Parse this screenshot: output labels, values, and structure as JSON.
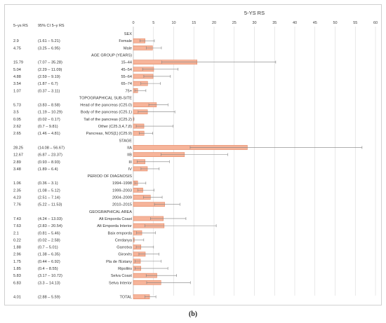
{
  "panel_label": "(b)",
  "chart_data": {
    "type": "bar",
    "orientation": "horizontal",
    "title": "5-YS RS",
    "xlim": [
      0,
      60
    ],
    "xticks": [
      0,
      5,
      10,
      15,
      20,
      25,
      30,
      35,
      40,
      45,
      50,
      55,
      60
    ],
    "grid": true,
    "bar_color": "#f6b49a",
    "bar_edge_color": "#e07b54",
    "table_headers": {
      "rs": "5–ys RS",
      "ci": "95% CI 5–y RS"
    },
    "rows": [
      {
        "kind": "header",
        "label": "SEX"
      },
      {
        "kind": "data",
        "label": "Female",
        "value": 2.9,
        "lo": 1.61,
        "hi": 5.21,
        "rs": "2.9",
        "ci": "(1.61 – 5.21)"
      },
      {
        "kind": "data",
        "label": "Male",
        "value": 4.75,
        "lo": 3.25,
        "hi": 6.95,
        "rs": "4.75",
        "ci": "(3.25 – 6.95)"
      },
      {
        "kind": "header",
        "label": "AGE GROUP (YEARS)"
      },
      {
        "kind": "data",
        "label": "15–44",
        "value": 15.79,
        "lo": 7.07,
        "hi": 35.28,
        "rs": "15.79",
        "ci": "(7.07 – 35.28)"
      },
      {
        "kind": "data",
        "label": "45–54",
        "value": 5.04,
        "lo": 2.29,
        "hi": 11.09,
        "rs": "5.04",
        "ci": "(2.29 – 11.09)"
      },
      {
        "kind": "data",
        "label": "55–64",
        "value": 4.88,
        "lo": 2.59,
        "hi": 9.19,
        "rs": "4.88",
        "ci": "(2.59 – 9.19)"
      },
      {
        "kind": "data",
        "label": "65–74",
        "value": 3.54,
        "lo": 1.87,
        "hi": 6.7,
        "rs": "3.54",
        "ci": "(1.87 – 6.7)"
      },
      {
        "kind": "data",
        "label": "75+",
        "value": 1.07,
        "lo": 0.37,
        "hi": 3.11,
        "rs": "1.07",
        "ci": "(0.37 – 3.11)"
      },
      {
        "kind": "header",
        "label": "TOPOGRAPHICAL SUB-SITE"
      },
      {
        "kind": "data",
        "label": "Head of the pancreas (C25.0)",
        "value": 5.73,
        "lo": 3.83,
        "hi": 8.58,
        "rs": "5.73",
        "ci": "(3.83 – 8.58)"
      },
      {
        "kind": "data",
        "label": "Body of the pancreas  (C25.1)",
        "value": 3.5,
        "lo": 1.19,
        "hi": 10.29,
        "rs": "3.5",
        "ci": "(1.19 – 10.29)"
      },
      {
        "kind": "data",
        "label": "Tail of the pancreas (C25.2)",
        "value": 0.05,
        "lo": 0.02,
        "hi": 0.17,
        "rs": "0.05",
        "ci": "(0.02 – 0.17)"
      },
      {
        "kind": "data",
        "label": "Other (C25.3,4,7,8)",
        "value": 2.62,
        "lo": 0.7,
        "hi": 9.81,
        "rs": "2.62",
        "ci": "(0.7 – 9.81)"
      },
      {
        "kind": "data",
        "label": "Pancreas, NOS[1] (C25.9)",
        "value": 2.65,
        "lo": 1.46,
        "hi": 4.81,
        "rs": "2.65",
        "ci": "(1.46 – 4.81)"
      },
      {
        "kind": "header",
        "label": "STAGE"
      },
      {
        "kind": "data",
        "label": "IIA",
        "value": 28.25,
        "lo": 14.08,
        "hi": 56.67,
        "rs": "28.25",
        "ci": "(14.08 – 56.67)"
      },
      {
        "kind": "data",
        "label": "IIB",
        "value": 12.67,
        "lo": 6.87,
        "hi": 23.37,
        "rs": "12.67",
        "ci": "(6.87 – 23.37)"
      },
      {
        "kind": "data",
        "label": "III",
        "value": 2.89,
        "lo": 0.93,
        "hi": 8.93,
        "rs": "2.89",
        "ci": "(0.93 – 8.93)"
      },
      {
        "kind": "data",
        "label": "IV",
        "value": 3.48,
        "lo": 1.89,
        "hi": 6.4,
        "rs": "3.48",
        "ci": "(1.89 – 6.4)"
      },
      {
        "kind": "header",
        "label": "PERIOD OF DIAGNOSIS"
      },
      {
        "kind": "data",
        "label": "1994–1998",
        "value": 1.06,
        "lo": 0.36,
        "hi": 3.1,
        "rs": "1.06",
        "ci": "(0.36 – 3.1)"
      },
      {
        "kind": "data",
        "label": "1999–2003",
        "value": 2.35,
        "lo": 1.08,
        "hi": 5.12,
        "rs": "2.35",
        "ci": "(1.08 – 5.12)"
      },
      {
        "kind": "data",
        "label": "2004–2009",
        "value": 4.23,
        "lo": 2.51,
        "hi": 7.14,
        "rs": "4.23",
        "ci": "(2.51 – 7.14)"
      },
      {
        "kind": "data",
        "label": "2010–2015",
        "value": 7.76,
        "lo": 5.22,
        "hi": 11.53,
        "rs": "7.76",
        "ci": "(5.22 – 11.53)"
      },
      {
        "kind": "header",
        "label": "GEOGRAPHICAL AREA"
      },
      {
        "kind": "data",
        "label": "Alt Emporda Coast",
        "value": 7.43,
        "lo": 4.24,
        "hi": 13.03,
        "rs": "7.43",
        "ci": "(4.24 – 13.03)"
      },
      {
        "kind": "data",
        "label": "Alt Emporda Interior",
        "value": 7.63,
        "lo": 2.83,
        "hi": 20.54,
        "rs": "7.63",
        "ci": "(2.83 – 20.54)"
      },
      {
        "kind": "data",
        "label": "Baix emporda",
        "value": 2.1,
        "lo": 0.81,
        "hi": 5.46,
        "rs": "2.1",
        "ci": "(0.81 – 5.46)"
      },
      {
        "kind": "data",
        "label": "Cerdanya",
        "value": 0.22,
        "lo": 0.02,
        "hi": 2.58,
        "rs": "0.22",
        "ci": "(0.02 – 2.58)"
      },
      {
        "kind": "data",
        "label": "Garrotxa",
        "value": 1.88,
        "lo": 0.7,
        "hi": 5.01,
        "rs": "1.88",
        "ci": "(0.7 – 5.01)"
      },
      {
        "kind": "data",
        "label": "Gironès",
        "value": 2.96,
        "lo": 1.38,
        "hi": 6.35,
        "rs": "2.96",
        "ci": "(1.38 – 6.35)"
      },
      {
        "kind": "data",
        "label": "Pla de l'Estany",
        "value": 1.75,
        "lo": 0.44,
        "hi": 6.92,
        "rs": "1.75",
        "ci": "(0.44 – 6.92)"
      },
      {
        "kind": "data",
        "label": "Ripollès",
        "value": 1.85,
        "lo": 0.4,
        "hi": 8.55,
        "rs": "1.85",
        "ci": "(0.4 – 8.55)"
      },
      {
        "kind": "data",
        "label": "Selva Coast",
        "value": 5.83,
        "lo": 3.17,
        "hi": 10.72,
        "rs": "5.83",
        "ci": "(3.17 – 10.72)"
      },
      {
        "kind": "data",
        "label": "Selva Interior",
        "value": 6.83,
        "lo": 3.3,
        "hi": 14.13,
        "rs": "6.83",
        "ci": "(3.3 – 14.13)"
      },
      {
        "kind": "spacer"
      },
      {
        "kind": "data",
        "label": "TOTAL",
        "value": 4.01,
        "lo": 2.88,
        "hi": 5.59,
        "rs": "4.01",
        "ci": "(2.88 – 5.59)"
      }
    ]
  }
}
